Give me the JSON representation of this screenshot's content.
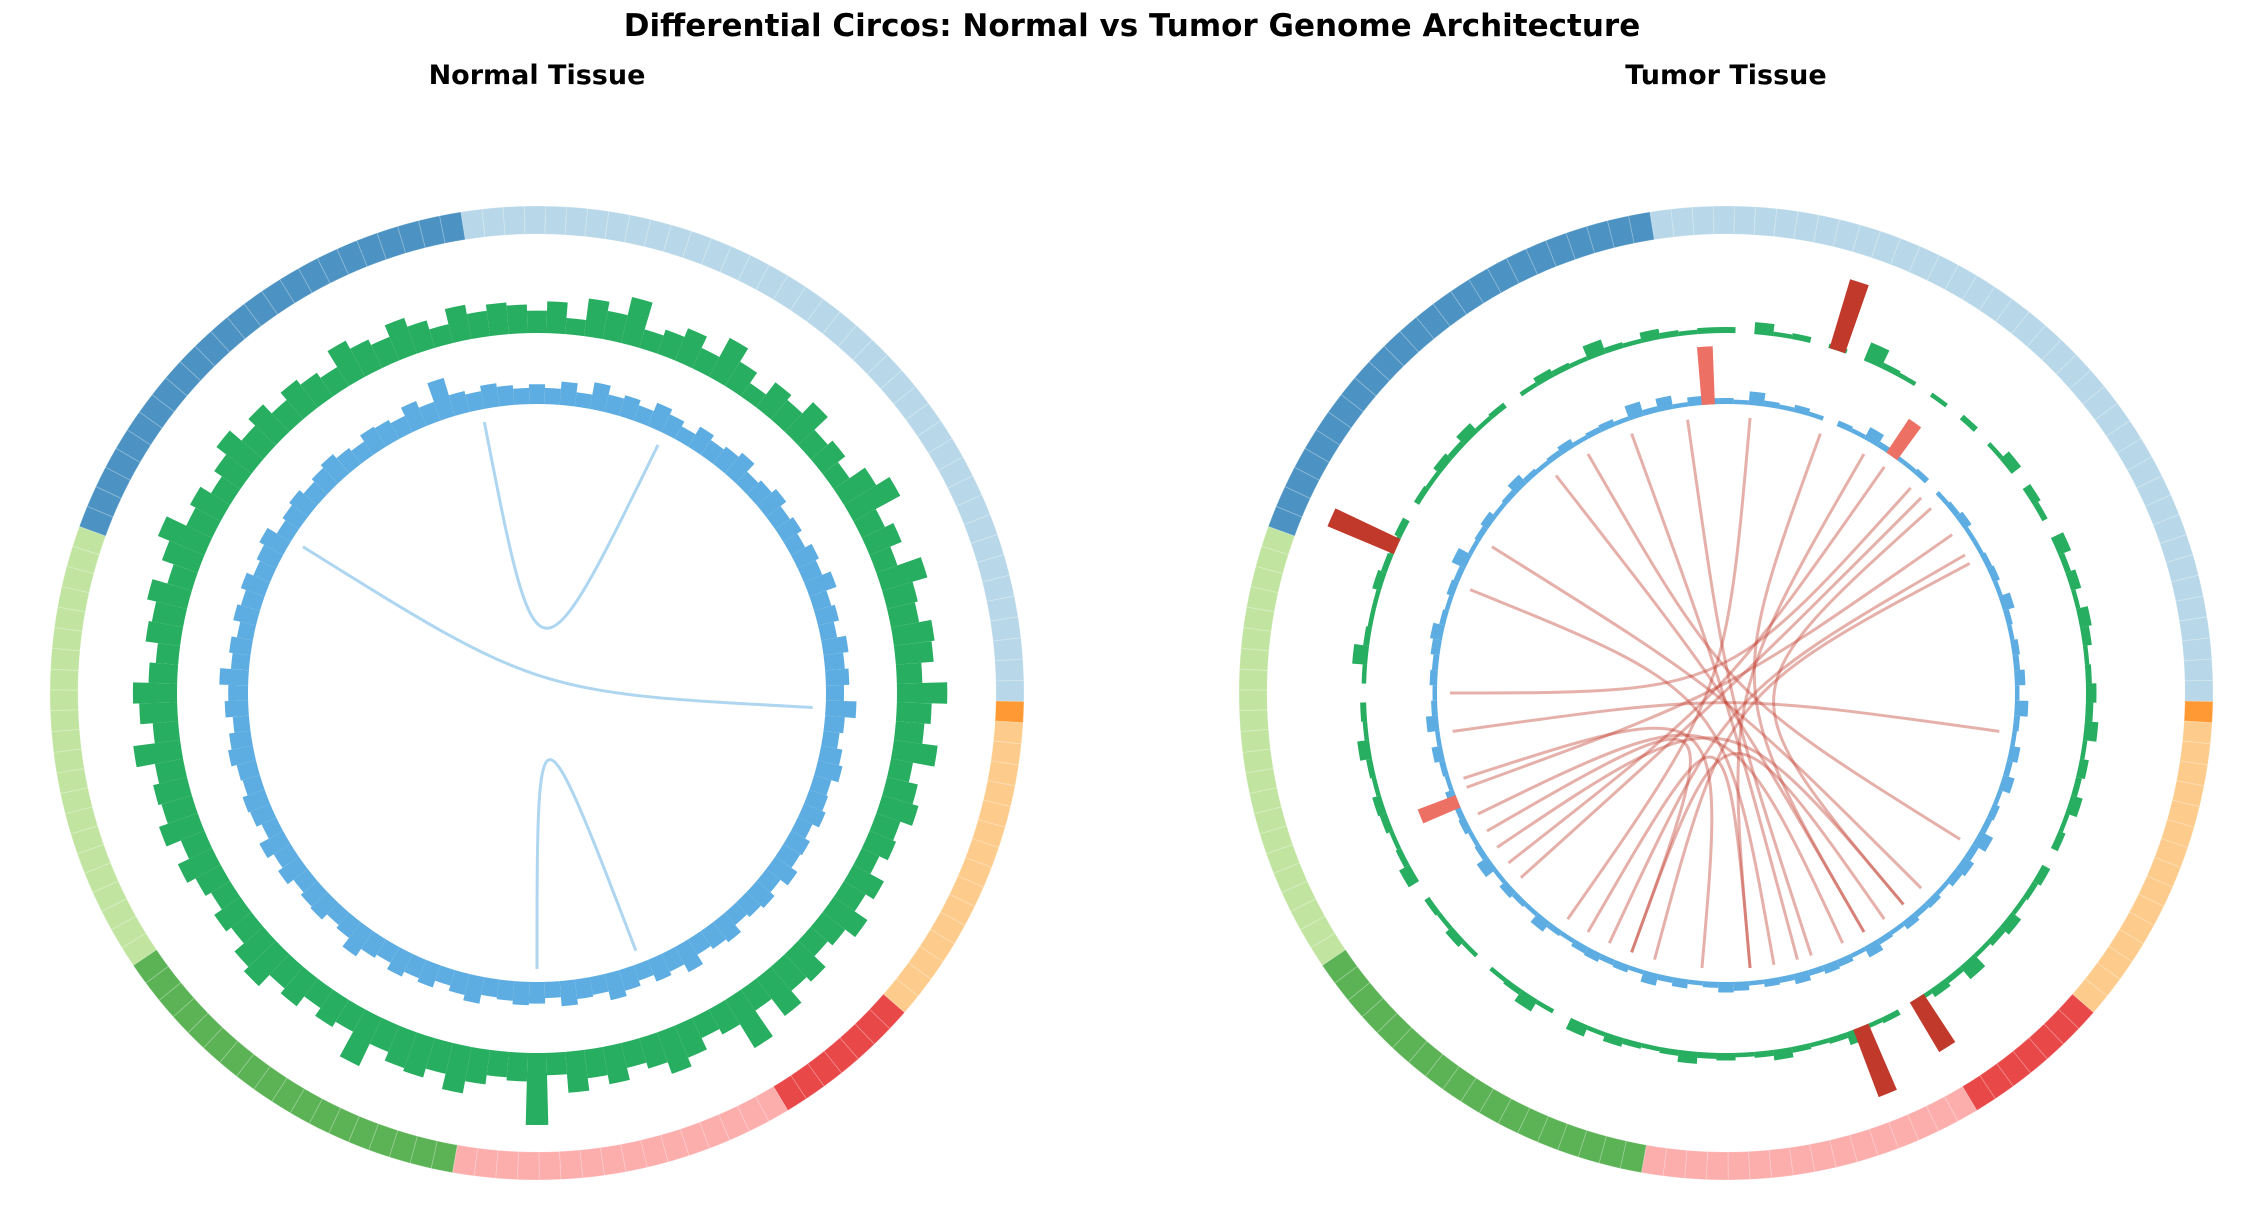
{
  "chart_data": [
    {
      "type": "circos",
      "title": "Normal Tissue",
      "segments": [
        {
          "start": 351,
          "end": 451,
          "color": "#a6cee3"
        },
        {
          "start": 91,
          "end": 93.5,
          "color": "#ff7f00"
        },
        {
          "start": 93.5,
          "end": 131,
          "color": "#fdbf6f"
        },
        {
          "start": 131,
          "end": 149,
          "color": "#e31a1c"
        },
        {
          "start": 149,
          "end": 190,
          "color": "#fb9a99"
        },
        {
          "start": 190,
          "end": 236,
          "color": "#33a02c"
        },
        {
          "start": 236,
          "end": 290,
          "color": "#b2df8a"
        },
        {
          "start": 290,
          "end": 351,
          "color": "#1f78b4"
        }
      ],
      "outer_track": {
        "color": "#27ae60",
        "values": [
          0.2,
          0.35,
          0.1,
          0.45,
          0.3,
          0.6,
          0.15,
          0.25,
          0.4,
          0.2,
          0.55,
          0.3,
          0.1,
          0.35,
          0.25,
          0.5,
          0.2,
          0.3,
          0.15,
          0.45,
          0.7,
          0.25,
          0.4,
          0.2,
          0.6,
          0.35,
          0.3,
          0.5,
          0.45,
          0.25,
          0.65,
          0.4,
          0.3,
          0.55,
          0.2,
          0.35,
          0.45,
          0.25,
          0.3,
          0.15,
          0.4,
          0.25,
          0.5,
          0.3,
          0.2,
          0.45,
          0.35,
          0.6,
          0.25,
          0.75,
          0.3,
          0.2,
          0.4,
          0.55,
          0.35,
          0.25,
          0.45,
          0.3,
          0.5,
          0.2,
          1.0,
          0.3,
          0.25,
          0.4,
          0.6,
          0.35,
          0.5,
          0.45,
          0.3,
          0.7,
          0.25,
          0.35,
          0.2,
          0.4,
          0.3,
          0.55,
          0.45,
          0.25,
          0.35,
          0.2,
          0.3,
          0.45,
          0.25,
          0.5,
          0.35,
          0.4,
          0.3,
          0.6,
          0.25,
          0.45,
          0.55,
          0.3,
          0.2,
          0.4,
          0.35,
          0.5,
          0.25,
          0.45,
          0.65,
          0.3,
          0.4,
          0.2,
          0.35,
          0.55,
          0.3,
          0.45,
          0.25,
          0.4,
          0.3,
          0.2,
          0.5,
          0.35,
          0.25,
          0.45,
          0.3,
          0.15,
          0.4,
          0.25,
          0.35,
          0.3
        ]
      },
      "inner_track": {
        "color": "#5dade2",
        "values": [
          0.3,
          0.2,
          0.4,
          0.15,
          0.5,
          0.25,
          0.35,
          0.2,
          0.45,
          0.3,
          0.15,
          0.4,
          0.25,
          0.35,
          0.5,
          0.2,
          0.3,
          0.45,
          0.25,
          0.35,
          0.2,
          0.4,
          0.3,
          0.55,
          0.25,
          0.35,
          0.2,
          0.45,
          0.3,
          0.4,
          0.25,
          0.6,
          0.3,
          0.2,
          0.35,
          0.45,
          0.25,
          0.3,
          0.4,
          0.2,
          0.35,
          0.3,
          0.5,
          0.25,
          0.4,
          0.3,
          0.2,
          0.45,
          0.35,
          0.25,
          0.55,
          0.3,
          0.4,
          0.2,
          0.35,
          0.5,
          0.25,
          0.3,
          0.45,
          0.2,
          0.35,
          0.4,
          0.3,
          0.25,
          0.5,
          0.35,
          0.2,
          0.4,
          0.3,
          0.45,
          0.25,
          0.35,
          0.6,
          0.3,
          0.2,
          0.4,
          0.35,
          0.25,
          0.45,
          0.3,
          0.5,
          0.2,
          0.35,
          0.4,
          0.25,
          0.3,
          0.45,
          0.35,
          0.2,
          0.4,
          0.3,
          0.55,
          0.25,
          0.35,
          0.2,
          0.4,
          0.3,
          0.45,
          0.25,
          0.35,
          0.5,
          0.2,
          0.3,
          0.4,
          0.25,
          0.35,
          0.45,
          0.3,
          0.2,
          0.4,
          0.35,
          0.25,
          0.5,
          0.3,
          0.85,
          0.35,
          0.25,
          0.4,
          0.3,
          0.2
        ]
      },
      "highlights": [],
      "links": {
        "color": "#5dade2",
        "pairs": [
          [
            349,
            26
          ],
          [
            302,
            93
          ],
          [
            180,
            159
          ]
        ]
      }
    },
    {
      "type": "circos",
      "title": "Tumor Tissue",
      "segments": [
        {
          "start": 351,
          "end": 451,
          "color": "#a6cee3"
        },
        {
          "start": 91,
          "end": 93.5,
          "color": "#ff7f00"
        },
        {
          "start": 93.5,
          "end": 131,
          "color": "#fdbf6f"
        },
        {
          "start": 131,
          "end": 149,
          "color": "#e31a1c"
        },
        {
          "start": 149,
          "end": 190,
          "color": "#fb9a99"
        },
        {
          "start": 190,
          "end": 236,
          "color": "#33a02c"
        },
        {
          "start": 236,
          "end": 290,
          "color": "#b2df8a"
        },
        {
          "start": 290,
          "end": 351,
          "color": "#1f78b4"
        }
      ],
      "outer_track": {
        "color": "#27ae60",
        "values": [
          0.1,
          0,
          0.3,
          0.05,
          0.1,
          0,
          0.05,
          0,
          0.55,
          0.1,
          0.05,
          0,
          0.05,
          0,
          0.1,
          0,
          0.05,
          0.3,
          0,
          0.2,
          0.1,
          0,
          0.35,
          0.1,
          0.25,
          0.05,
          0.3,
          0.2,
          0.05,
          0.1,
          0.25,
          0.15,
          0.35,
          0.05,
          0.2,
          0.1,
          0.3,
          0.05,
          0.15,
          0,
          0.2,
          0.1,
          0.05,
          0.3,
          0.15,
          0.05,
          0.45,
          0.1,
          0.2,
          0.05,
          0,
          0.1,
          0.05,
          0.35,
          0.1,
          0.05,
          0.1,
          0.25,
          0.1,
          0.05,
          0.15,
          0.1,
          0.3,
          0.1,
          0.05,
          0.1,
          0.2,
          0.05,
          0.3,
          0,
          0.05,
          0.35,
          0.1,
          0.05,
          0,
          0.05,
          0.2,
          0.05,
          0.1,
          0,
          0.3,
          0.1,
          0.05,
          0.15,
          0.2,
          0.05,
          0.1,
          0.3,
          0.05,
          0.1,
          0,
          0.05,
          0.4,
          0.1,
          0.05,
          0.05,
          0.2,
          0.1,
          0.05,
          0.15,
          0,
          0.1,
          0.05,
          0.2,
          0.1,
          0.3,
          0.05,
          0.1,
          0,
          0.05,
          0.2,
          0.1,
          0.05,
          0.4,
          0.1,
          0.05,
          0.25,
          0.1,
          0.05,
          0.1
        ]
      },
      "inner_track": {
        "color": "#5dade2",
        "values": [
          0.1,
          0.05,
          0.35,
          0.1,
          0.05,
          0.15,
          0.05,
          0,
          0.1,
          0.05,
          0.35,
          0.1,
          0.05,
          0.05,
          0.1,
          0,
          0.05,
          0.1,
          0.2,
          0.05,
          0.05,
          0.1,
          0.15,
          0.05,
          0.3,
          0.1,
          0.05,
          0.15,
          0.1,
          0.25,
          0.05,
          0.35,
          0.1,
          0.05,
          0.25,
          0.1,
          0.3,
          0.05,
          0.15,
          0.1,
          0.4,
          0.15,
          0.3,
          0.2,
          0.05,
          0.15,
          0.1,
          0.2,
          0.05,
          0.1,
          0.3,
          0.05,
          0.15,
          0.2,
          0.1,
          0.25,
          0.1,
          0.15,
          0.05,
          0.2,
          0.25,
          0.1,
          0.05,
          0.2,
          0.1,
          0.3,
          0.05,
          0.15,
          0.1,
          0.2,
          0.15,
          0.05,
          0.1,
          0.3,
          0.05,
          0.1,
          0.2,
          0.05,
          0.35,
          0.1,
          0.05,
          0.15,
          0.1,
          0.2,
          0.05,
          0.1,
          0.25,
          0.05,
          0.3,
          0.1,
          0.05,
          0.15,
          0.1,
          0.2,
          0.3,
          0.1,
          0.05,
          0.15,
          0.1,
          0.4,
          0.05,
          0.1,
          0.2,
          0.05,
          0.1,
          0.3,
          0.1,
          0.05,
          0.1,
          0.2,
          0.05,
          0.1,
          0.15,
          0.05,
          0.4,
          0.1,
          0.35,
          0.05,
          0.2,
          0.1
        ]
      },
      "highlights": [
        {
          "track": "outer",
          "angle": 18,
          "value": 1.0,
          "color": "#c0392b"
        },
        {
          "track": "outer",
          "angle": 294,
          "value": 1.0,
          "color": "#c0392b"
        },
        {
          "track": "outer",
          "angle": 158,
          "value": 1.0,
          "color": "#c0392b"
        },
        {
          "track": "outer",
          "angle": 148,
          "value": 0.8,
          "color": "#c0392b"
        },
        {
          "track": "inner",
          "angle": 356.5,
          "value": 1.0,
          "color": "#ec7063"
        },
        {
          "track": "inner",
          "angle": 35,
          "value": 0.7,
          "color": "#ec7063"
        },
        {
          "track": "inner",
          "angle": 248,
          "value": 0.7,
          "color": "#ec7063"
        }
      ],
      "links": {
        "color": "#c0392b",
        "pairs": [
          [
            352,
            162
          ],
          [
            5,
            215
          ],
          [
            20,
            150
          ],
          [
            35,
            232
          ],
          [
            48,
            140
          ],
          [
            55,
            250
          ],
          [
            60,
            205
          ],
          [
            62,
            195
          ],
          [
            42,
            270
          ],
          [
            30,
            175
          ],
          [
            340,
            165
          ],
          [
            322,
            150
          ],
          [
            302,
            135
          ],
          [
            292,
            170
          ],
          [
            252,
            185
          ],
          [
            244,
            155
          ],
          [
            240,
            200
          ],
          [
            236,
            140
          ],
          [
            262,
            98
          ],
          [
            210,
            175
          ],
          [
            200,
            145
          ],
          [
            330,
            122
          ],
          [
            45,
            228
          ]
        ]
      }
    }
  ],
  "title": "Differential Circos: Normal vs Tumor Genome Architecture"
}
